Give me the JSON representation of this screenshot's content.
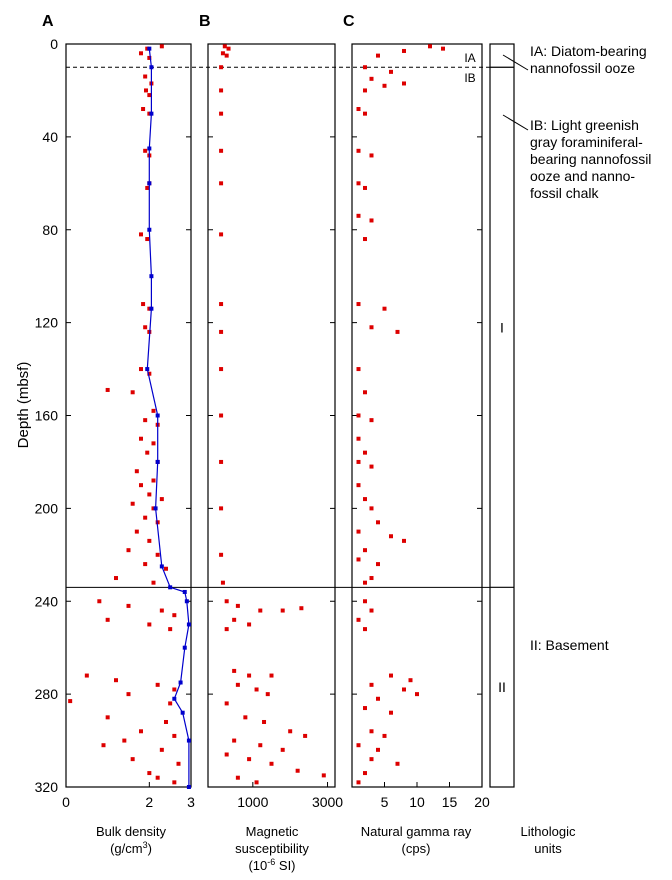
{
  "chart_data": {
    "type": "scatter",
    "y_axis": {
      "label": "Depth (mbsf)",
      "range": [
        0,
        320
      ],
      "ticks": [
        "0",
        "40",
        "80",
        "120",
        "160",
        "200",
        "240",
        "280",
        "320"
      ]
    },
    "panels": [
      {
        "letter": "A",
        "xlabel_lines": [
          "Bulk density",
          "(g/cm³)"
        ],
        "xlim": [
          0,
          3
        ],
        "xticks": [
          "0",
          "2",
          "3"
        ],
        "series": [
          {
            "name": "discrete",
            "color": "#dd0000",
            "marker": "square",
            "points": [
              [
                1.95,
                2
              ],
              [
                2.3,
                1
              ],
              [
                1.8,
                4
              ],
              [
                2.0,
                6
              ],
              [
                1.9,
                14
              ],
              [
                2.05,
                17
              ],
              [
                1.92,
                20
              ],
              [
                2.0,
                22
              ],
              [
                1.85,
                28
              ],
              [
                2.0,
                30
              ],
              [
                1.9,
                46
              ],
              [
                2.0,
                48
              ],
              [
                2.0,
                60
              ],
              [
                1.95,
                62
              ],
              [
                1.8,
                82
              ],
              [
                1.95,
                84
              ],
              [
                1.85,
                112
              ],
              [
                2.0,
                114
              ],
              [
                1.9,
                122
              ],
              [
                2.0,
                124
              ],
              [
                1.8,
                140
              ],
              [
                2.0,
                142
              ],
              [
                1.0,
                149
              ],
              [
                1.6,
                150
              ],
              [
                2.1,
                158
              ],
              [
                1.9,
                162
              ],
              [
                2.2,
                164
              ],
              [
                1.8,
                170
              ],
              [
                2.1,
                172
              ],
              [
                1.95,
                176
              ],
              [
                2.2,
                180
              ],
              [
                1.7,
                184
              ],
              [
                2.1,
                188
              ],
              [
                1.8,
                190
              ],
              [
                2.0,
                194
              ],
              [
                2.3,
                196
              ],
              [
                1.6,
                198
              ],
              [
                2.1,
                200
              ],
              [
                1.9,
                204
              ],
              [
                2.2,
                206
              ],
              [
                1.7,
                210
              ],
              [
                2.0,
                214
              ],
              [
                1.5,
                218
              ],
              [
                2.2,
                220
              ],
              [
                1.9,
                224
              ],
              [
                2.4,
                226
              ],
              [
                1.2,
                230
              ],
              [
                2.1,
                232
              ],
              [
                0.8,
                240
              ],
              [
                1.5,
                242
              ],
              [
                2.3,
                244
              ],
              [
                2.6,
                246
              ],
              [
                1.0,
                248
              ],
              [
                2.0,
                250
              ],
              [
                2.5,
                252
              ],
              [
                0.5,
                272
              ],
              [
                1.2,
                274
              ],
              [
                2.2,
                276
              ],
              [
                2.6,
                278
              ],
              [
                1.5,
                280
              ],
              [
                0.1,
                283
              ],
              [
                2.5,
                284
              ],
              [
                1.0,
                290
              ],
              [
                2.4,
                292
              ],
              [
                1.8,
                296
              ],
              [
                2.6,
                298
              ],
              [
                0.9,
                302
              ],
              [
                2.3,
                304
              ],
              [
                1.6,
                308
              ],
              [
                2.7,
                310
              ],
              [
                2.2,
                316
              ],
              [
                2.6,
                318
              ],
              [
                1.4,
                300
              ],
              [
                2.0,
                314
              ]
            ]
          },
          {
            "name": "log",
            "color": "#0000cc",
            "marker": "line",
            "points": [
              [
                2.0,
                2
              ],
              [
                2.05,
                10
              ],
              [
                2.05,
                30
              ],
              [
                2.0,
                45
              ],
              [
                2.0,
                60
              ],
              [
                2.0,
                80
              ],
              [
                2.05,
                100
              ],
              [
                2.05,
                114
              ],
              [
                1.95,
                140
              ],
              [
                2.2,
                160
              ],
              [
                2.2,
                180
              ],
              [
                2.15,
                200
              ],
              [
                2.3,
                225
              ],
              [
                2.5,
                234
              ],
              [
                2.85,
                236
              ],
              [
                2.9,
                240
              ],
              [
                2.95,
                250
              ],
              [
                2.85,
                260
              ],
              [
                2.75,
                275
              ],
              [
                2.6,
                282
              ],
              [
                2.8,
                288
              ],
              [
                2.95,
                300
              ],
              [
                2.95,
                320
              ]
            ]
          }
        ]
      },
      {
        "letter": "B",
        "xlabel_lines": [
          "Magnetic",
          "susceptibility",
          "(10-6 SI)"
        ],
        "xlim": [
          -200,
          3200
        ],
        "xticks": [
          "1000",
          "3000"
        ],
        "series": [
          {
            "name": "discrete",
            "color": "#dd0000",
            "marker": "square",
            "points": [
              [
                250,
                1
              ],
              [
                350,
                2
              ],
              [
                200,
                4
              ],
              [
                300,
                5
              ],
              [
                150,
                10
              ],
              [
                150,
                20
              ],
              [
                150,
                30
              ],
              [
                150,
                46
              ],
              [
                150,
                60
              ],
              [
                150,
                82
              ],
              [
                150,
                112
              ],
              [
                150,
                124
              ],
              [
                150,
                140
              ],
              [
                150,
                160
              ],
              [
                150,
                180
              ],
              [
                150,
                200
              ],
              [
                150,
                220
              ],
              [
                200,
                232
              ],
              [
                300,
                240
              ],
              [
                600,
                242
              ],
              [
                1200,
                244
              ],
              [
                1800,
                244
              ],
              [
                2300,
                243
              ],
              [
                500,
                248
              ],
              [
                900,
                250
              ],
              [
                300,
                252
              ],
              [
                500,
                270
              ],
              [
                900,
                272
              ],
              [
                1500,
                272
              ],
              [
                600,
                276
              ],
              [
                1100,
                278
              ],
              [
                1400,
                280
              ],
              [
                300,
                284
              ],
              [
                800,
                290
              ],
              [
                1300,
                292
              ],
              [
                2000,
                296
              ],
              [
                2400,
                298
              ],
              [
                500,
                300
              ],
              [
                1200,
                302
              ],
              [
                1800,
                304
              ],
              [
                300,
                306
              ],
              [
                900,
                308
              ],
              [
                1500,
                310
              ],
              [
                2200,
                313
              ],
              [
                2900,
                315
              ],
              [
                600,
                316
              ],
              [
                1100,
                318
              ]
            ]
          }
        ]
      },
      {
        "letter": "C",
        "xlabel_lines": [
          "Natural gamma ray",
          "(cps)"
        ],
        "xlim": [
          0,
          20
        ],
        "xticks": [
          "5",
          "10",
          "15",
          "20"
        ],
        "series": [
          {
            "name": "discrete",
            "color": "#dd0000",
            "marker": "square",
            "points": [
              [
                12,
                1
              ],
              [
                14,
                2
              ],
              [
                8,
                3
              ],
              [
                4,
                5
              ],
              [
                2,
                10
              ],
              [
                6,
                12
              ],
              [
                3,
                15
              ],
              [
                8,
                17
              ],
              [
                5,
                18
              ],
              [
                2,
                20
              ],
              [
                1,
                28
              ],
              [
                2,
                30
              ],
              [
                1,
                46
              ],
              [
                3,
                48
              ],
              [
                1,
                60
              ],
              [
                2,
                62
              ],
              [
                1,
                74
              ],
              [
                3,
                76
              ],
              [
                2,
                84
              ],
              [
                1,
                112
              ],
              [
                5,
                114
              ],
              [
                3,
                122
              ],
              [
                7,
                124
              ],
              [
                1,
                140
              ],
              [
                2,
                150
              ],
              [
                1,
                160
              ],
              [
                3,
                162
              ],
              [
                1,
                170
              ],
              [
                2,
                176
              ],
              [
                1,
                180
              ],
              [
                3,
                182
              ],
              [
                1,
                190
              ],
              [
                2,
                196
              ],
              [
                3,
                200
              ],
              [
                4,
                206
              ],
              [
                1,
                210
              ],
              [
                6,
                212
              ],
              [
                8,
                214
              ],
              [
                2,
                218
              ],
              [
                1,
                222
              ],
              [
                4,
                224
              ],
              [
                3,
                230
              ],
              [
                2,
                232
              ],
              [
                2,
                240
              ],
              [
                3,
                244
              ],
              [
                1,
                248
              ],
              [
                2,
                252
              ],
              [
                6,
                272
              ],
              [
                9,
                274
              ],
              [
                3,
                276
              ],
              [
                8,
                278
              ],
              [
                10,
                280
              ],
              [
                4,
                282
              ],
              [
                2,
                286
              ],
              [
                6,
                288
              ],
              [
                3,
                296
              ],
              [
                5,
                298
              ],
              [
                1,
                302
              ],
              [
                4,
                304
              ],
              [
                3,
                308
              ],
              [
                7,
                310
              ],
              [
                2,
                314
              ],
              [
                1,
                318
              ]
            ]
          }
        ]
      }
    ],
    "boundaries": [
      {
        "depth": 10,
        "style": "dashed",
        "labels": [
          "IA",
          "IB"
        ]
      },
      {
        "depth": 234,
        "style": "solid"
      }
    ],
    "lithology": {
      "column_label_lines": [
        "Lithologic",
        "units"
      ],
      "units": [
        {
          "name": "I",
          "top": 10,
          "bottom": 234
        },
        {
          "name": "II",
          "top": 234,
          "bottom": 320
        }
      ],
      "descriptions": [
        {
          "lines": [
            "IA: Diatom-bearing",
            "nannofossil ooze"
          ]
        },
        {
          "lines": [
            "IB: Light greenish",
            "gray foraminiferal-",
            "bearing nannofossil",
            "ooze and nanno-",
            "fossil chalk"
          ]
        },
        {
          "lines": [
            "II: Basement"
          ]
        }
      ]
    }
  }
}
